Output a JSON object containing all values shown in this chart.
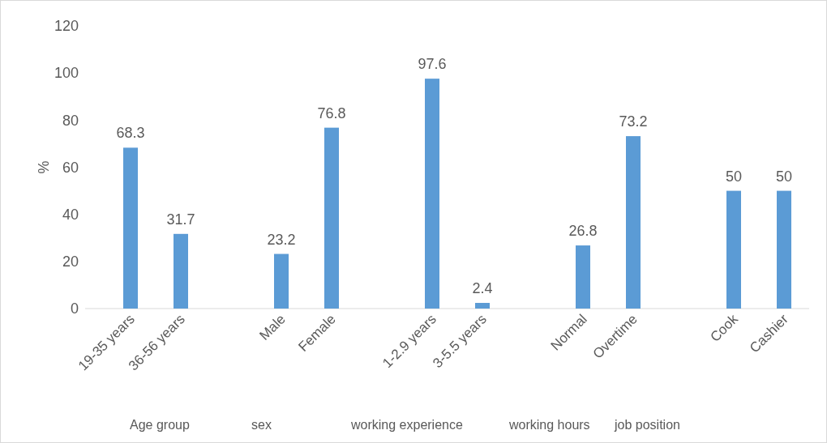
{
  "chart_data": {
    "type": "bar",
    "ylabel": "%",
    "categories": [
      "19-35 years",
      "36-56 years",
      null,
      "Male",
      "Female",
      null,
      "1-2.9 years",
      "3-5.5 years",
      null,
      "Normal",
      "Overtime",
      null,
      "Cook",
      "Cashier"
    ],
    "values": [
      68.3,
      31.7,
      null,
      23.2,
      76.8,
      null,
      97.6,
      2.4,
      null,
      26.8,
      73.2,
      null,
      50,
      50
    ],
    "color": "#5b9bd5",
    "ylim": [
      0,
      120
    ],
    "yticks": [
      0,
      20,
      40,
      60,
      80,
      100,
      120
    ],
    "grid": false,
    "data_labels": true,
    "annotations": [
      "Age group",
      "sex",
      "working experience",
      "working hours",
      "job position"
    ]
  }
}
